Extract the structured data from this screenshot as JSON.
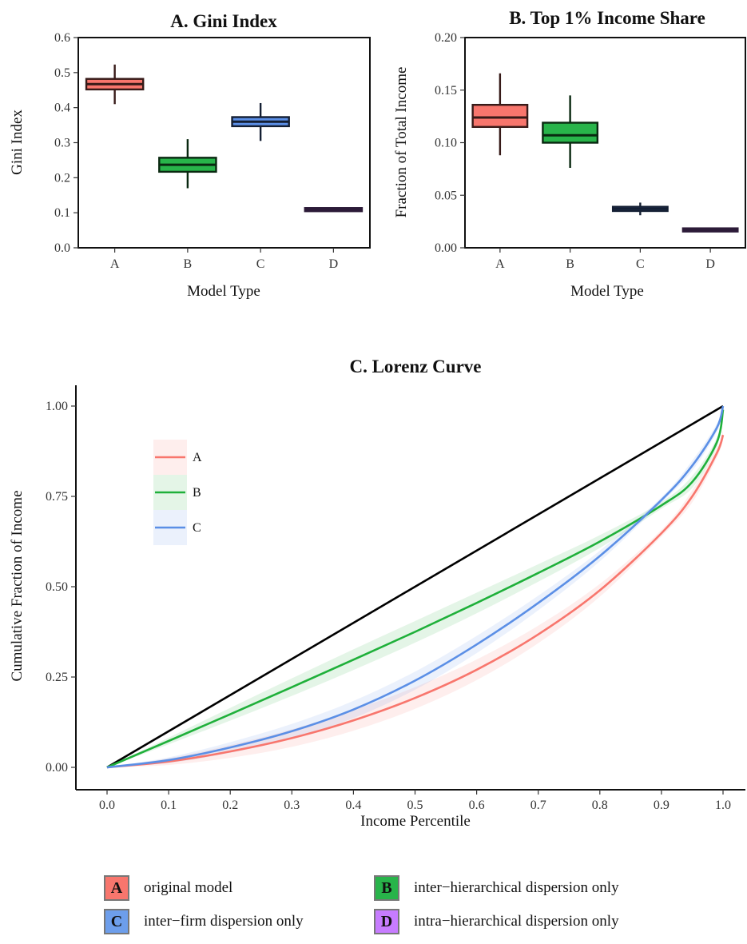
{
  "chart_data": [
    {
      "type": "box",
      "title": "A.  Gini Index",
      "xlabel": "Model Type",
      "ylabel": "Gini Index",
      "categories": [
        "A",
        "B",
        "C",
        "D"
      ],
      "ylim": [
        0.0,
        0.6
      ],
      "yticks": [
        "0.0",
        "0.1",
        "0.2",
        "0.3",
        "0.4",
        "0.5",
        "0.6"
      ],
      "boxes": [
        {
          "category": "A",
          "min": 0.41,
          "q1": 0.452,
          "median": 0.467,
          "q3": 0.482,
          "max": 0.523,
          "color": "#f8766d"
        },
        {
          "category": "B",
          "min": 0.17,
          "q1": 0.217,
          "median": 0.237,
          "q3": 0.257,
          "max": 0.31,
          "color": "#28b44a"
        },
        {
          "category": "C",
          "min": 0.305,
          "q1": 0.347,
          "median": 0.36,
          "q3": 0.373,
          "max": 0.413,
          "color": "#5b8fe6"
        },
        {
          "category": "D",
          "min": 0.104,
          "q1": 0.107,
          "median": 0.109,
          "q3": 0.111,
          "max": 0.115,
          "color": "#c77cff"
        }
      ]
    },
    {
      "type": "box",
      "title": "B.  Top 1% Income Share",
      "xlabel": "Model Type",
      "ylabel": "Fraction of Total Income",
      "categories": [
        "A",
        "B",
        "C",
        "D"
      ],
      "ylim": [
        0.0,
        0.2
      ],
      "yticks": [
        "0.00",
        "0.05",
        "0.10",
        "0.15",
        "0.20"
      ],
      "boxes": [
        {
          "category": "A",
          "min": 0.088,
          "q1": 0.115,
          "median": 0.124,
          "q3": 0.136,
          "max": 0.166,
          "color": "#f8766d"
        },
        {
          "category": "B",
          "min": 0.076,
          "q1": 0.1,
          "median": 0.107,
          "q3": 0.119,
          "max": 0.145,
          "color": "#28b44a"
        },
        {
          "category": "C",
          "min": 0.031,
          "q1": 0.035,
          "median": 0.037,
          "q3": 0.039,
          "max": 0.043,
          "color": "#5b8fe6"
        },
        {
          "category": "D",
          "min": 0.016,
          "q1": 0.0165,
          "median": 0.017,
          "q3": 0.0175,
          "max": 0.018,
          "color": "#c77cff"
        }
      ]
    },
    {
      "type": "line",
      "title": "C.  Lorenz Curve",
      "xlabel": "Income Percentile",
      "ylabel": "Cumulative Fraction of Income",
      "xlim": [
        0.0,
        1.0
      ],
      "ylim": [
        0.0,
        1.0
      ],
      "xticks": [
        "0.0",
        "0.1",
        "0.2",
        "0.3",
        "0.4",
        "0.5",
        "0.6",
        "0.7",
        "0.8",
        "0.9",
        "1.0"
      ],
      "yticks": [
        "0.00",
        "0.25",
        "0.50",
        "0.75",
        "1.00"
      ],
      "legend_position": "top-left",
      "x": [
        0.0,
        0.1,
        0.2,
        0.3,
        0.4,
        0.5,
        0.6,
        0.7,
        0.8,
        0.9,
        0.95,
        0.99,
        1.0
      ],
      "equality_line": {
        "x": [
          0.0,
          1.0
        ],
        "y": [
          0.0,
          1.0
        ],
        "color": "#000000"
      },
      "series": [
        {
          "name": "A",
          "color": "#f8766d",
          "y": [
            0.0,
            0.016,
            0.044,
            0.081,
            0.13,
            0.192,
            0.27,
            0.368,
            0.49,
            0.648,
            0.75,
            0.87,
            0.92
          ],
          "band": 0.03
        },
        {
          "name": "B",
          "color": "#1fb03a",
          "y": [
            0.0,
            0.073,
            0.147,
            0.222,
            0.298,
            0.375,
            0.455,
            0.538,
            0.625,
            0.725,
            0.79,
            0.9,
            0.99
          ],
          "band": 0.03
        },
        {
          "name": "C",
          "color": "#5b8fe6",
          "y": [
            0.0,
            0.02,
            0.055,
            0.1,
            0.16,
            0.24,
            0.34,
            0.455,
            0.585,
            0.74,
            0.835,
            0.94,
            1.0
          ],
          "band": 0.025
        }
      ]
    }
  ],
  "legend": {
    "items": [
      {
        "key": "A",
        "label": "original model",
        "color": "#f8766d"
      },
      {
        "key": "B",
        "label": "inter−hierarchical dispersion only",
        "color": "#28b44a"
      },
      {
        "key": "C",
        "label": "inter−firm dispersion only",
        "color": "#6d9eeb"
      },
      {
        "key": "D",
        "label": "intra−hierarchical dispersion only",
        "color": "#c77cff"
      }
    ]
  }
}
